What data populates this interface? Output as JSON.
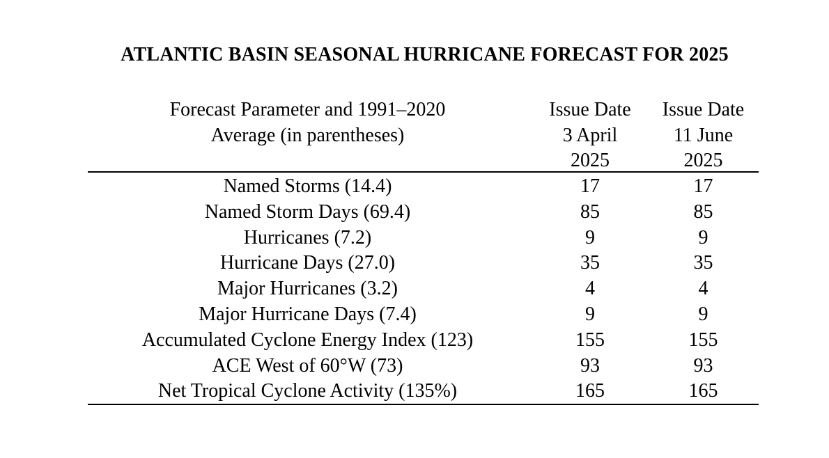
{
  "title": "ATLANTIC BASIN SEASONAL HURRICANE FORECAST FOR 2025",
  "header": {
    "parameter": [
      "Forecast Parameter and 1991–2020",
      "Average (in parentheses)"
    ],
    "col1": [
      "Issue Date",
      "3 April",
      "2025"
    ],
    "col2": [
      "Issue Date",
      "11 June",
      "2025"
    ]
  },
  "rows": [
    {
      "parameter": "Named Storms (14.4)",
      "april": "17",
      "june": "17"
    },
    {
      "parameter": "Named Storm Days (69.4)",
      "april": "85",
      "june": "85"
    },
    {
      "parameter": "Hurricanes (7.2)",
      "april": "9",
      "june": "9"
    },
    {
      "parameter": "Hurricane Days (27.0)",
      "april": "35",
      "june": "35"
    },
    {
      "parameter": "Major Hurricanes (3.2)",
      "april": "4",
      "june": "4"
    },
    {
      "parameter": "Major Hurricane Days (7.4)",
      "april": "9",
      "june": "9"
    },
    {
      "parameter": "Accumulated Cyclone Energy Index (123)",
      "april": "155",
      "june": "155"
    },
    {
      "parameter": "ACE West of 60°W (73)",
      "april": "93",
      "june": "93"
    },
    {
      "parameter": "Net Tropical Cyclone Activity (135%)",
      "april": "165",
      "june": "165"
    }
  ]
}
